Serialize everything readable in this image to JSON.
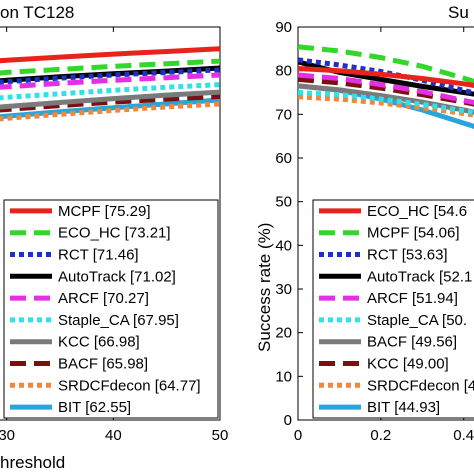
{
  "chart_data": [
    {
      "type": "line",
      "title": "on TC128",
      "xlabel": "hreshold",
      "ylabel": "",
      "xlim": [
        20,
        50
      ],
      "ylim": [
        0,
        90
      ],
      "xticks": [
        30,
        40,
        50
      ],
      "yticks": [],
      "grid": false,
      "legend_position": "lower-right",
      "x": [
        20,
        25,
        30,
        35,
        40,
        45,
        50
      ],
      "series": [
        {
          "name": "MCPF [75.29]",
          "color": "#e8231c",
          "dash": "solid",
          "values": [
            80.5,
            81.5,
            82.4,
            83.1,
            83.8,
            84.4,
            85.0
          ]
        },
        {
          "name": "ECO_HC [73.21]",
          "color": "#33d62a",
          "dash": "long",
          "values": [
            77.5,
            78.6,
            79.6,
            80.3,
            81.0,
            81.6,
            82.2
          ]
        },
        {
          "name": "RCT [71.46]",
          "color": "#1f2fc8",
          "dash": "dot",
          "values": [
            75.6,
            76.6,
            77.5,
            78.3,
            79.0,
            79.6,
            80.2
          ]
        },
        {
          "name": "AutoTrack [71.02]",
          "color": "#000000",
          "dash": "solid",
          "values": [
            75.8,
            76.9,
            77.8,
            78.6,
            79.3,
            79.9,
            80.6
          ]
        },
        {
          "name": "ARCF [70.27]",
          "color": "#e52ee5",
          "dash": "long",
          "values": [
            74.4,
            75.4,
            76.3,
            77.1,
            77.8,
            78.4,
            79.0
          ]
        },
        {
          "name": "Staple_CA [67.95]",
          "color": "#32e0e6",
          "dash": "dot",
          "values": [
            71.8,
            72.9,
            73.9,
            74.7,
            75.5,
            76.2,
            76.8
          ]
        },
        {
          "name": "KCC [66.98]",
          "color": "#7a7a7a",
          "dash": "solid",
          "values": [
            69.6,
            70.8,
            71.8,
            72.7,
            73.6,
            74.4,
            75.1
          ]
        },
        {
          "name": "BACF [65.98]",
          "color": "#7a1010",
          "dash": "long",
          "values": [
            69.0,
            70.1,
            71.1,
            72.0,
            72.8,
            73.5,
            74.1
          ]
        },
        {
          "name": "SRDCFdecon [64.77]",
          "color": "#f0873a",
          "dash": "dot",
          "values": [
            66.8,
            68.0,
            69.1,
            70.0,
            70.9,
            71.7,
            72.4
          ]
        },
        {
          "name": "BIT [62.55]",
          "color": "#2aa5d9",
          "dash": "solid",
          "values": [
            67.5,
            68.6,
            69.6,
            70.6,
            71.5,
            72.4,
            73.3
          ]
        }
      ]
    },
    {
      "type": "line",
      "title": "Su",
      "xlabel": "",
      "ylabel": "Success rate (%)",
      "xlim": [
        0,
        0.7
      ],
      "ylim": [
        0,
        90
      ],
      "xticks": [
        0,
        0.2,
        0.4
      ],
      "yticks": [
        0,
        10,
        20,
        30,
        40,
        50,
        60,
        70,
        80,
        90
      ],
      "grid": false,
      "legend_position": "lower-left",
      "x": [
        0,
        0.1,
        0.2,
        0.3,
        0.4,
        0.5,
        0.6,
        0.7
      ],
      "series": [
        {
          "name": "ECO_HC [54.6",
          "color": "#e8231c",
          "dash": "solid",
          "values": [
            80.5,
            80.0,
            79.2,
            78.2,
            77.0,
            75.5,
            73.6,
            71.0
          ]
        },
        {
          "name": "MCPF [54.06]",
          "color": "#33d62a",
          "dash": "long",
          "values": [
            85.5,
            84.5,
            83.0,
            81.0,
            78.3,
            75.3,
            72.0,
            68.0
          ]
        },
        {
          "name": "RCT [53.63]",
          "color": "#1f2fc8",
          "dash": "dot",
          "values": [
            82.5,
            81.3,
            79.8,
            77.8,
            75.5,
            73.0,
            70.0,
            66.0
          ]
        },
        {
          "name": "AutoTrack [52.1",
          "color": "#000000",
          "dash": "solid",
          "values": [
            82.0,
            79.6,
            78.0,
            76.4,
            75.0,
            73.5,
            71.8,
            70.0
          ]
        },
        {
          "name": "ARCF [51.94]",
          "color": "#e52ee5",
          "dash": "long",
          "values": [
            79.0,
            78.2,
            76.8,
            75.2,
            73.2,
            71.2,
            69.0,
            66.5
          ]
        },
        {
          "name": "Staple_CA [50.",
          "color": "#32e0e6",
          "dash": "dot",
          "values": [
            75.0,
            74.5,
            73.5,
            72.3,
            70.8,
            69.2,
            67.2,
            65.0
          ]
        },
        {
          "name": "BACF [49.56]",
          "color": "#7a7a7a",
          "dash": "solid",
          "values": [
            76.5,
            75.6,
            74.3,
            72.8,
            71.0,
            69.0,
            66.8,
            64.0
          ]
        },
        {
          "name": "KCC [49.00]",
          "color": "#7a1010",
          "dash": "long",
          "values": [
            78.0,
            77.2,
            76.0,
            74.5,
            72.8,
            71.0,
            68.8,
            66.2
          ]
        },
        {
          "name": "SRDCFdecon [4",
          "color": "#f0873a",
          "dash": "dot",
          "values": [
            74.0,
            73.5,
            72.6,
            71.5,
            70.2,
            68.8,
            67.2,
            65.2
          ]
        },
        {
          "name": "BIT [44.93]",
          "color": "#2aa5d9",
          "dash": "solid",
          "values": [
            76.5,
            75.5,
            73.5,
            71.0,
            68.0,
            65.0,
            62.0,
            58.5
          ]
        }
      ]
    }
  ]
}
